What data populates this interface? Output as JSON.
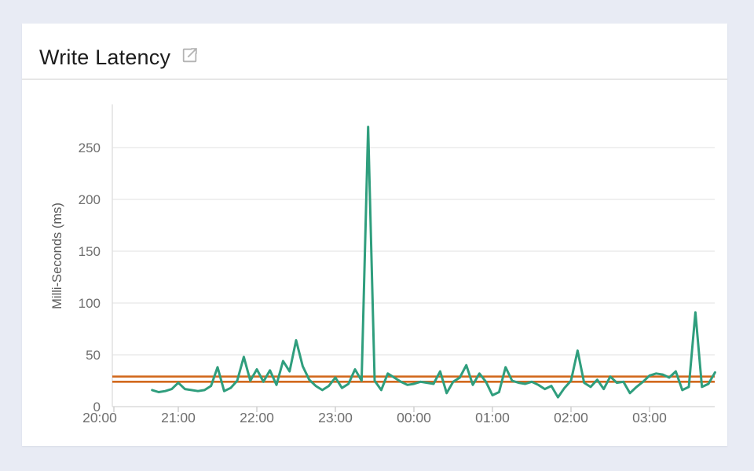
{
  "page": {
    "background_color": "#e8ebf4"
  },
  "card": {
    "title": "Write Latency",
    "title_icon": "external-link-icon"
  },
  "chart_data": {
    "type": "line",
    "title": "Write Latency",
    "xlabel": "",
    "ylabel": "Milli-Seconds (ms)",
    "x_tick_labels": [
      "20:00",
      "21:00",
      "22:00",
      "23:00",
      "00:00",
      "01:00",
      "02:00",
      "03:00"
    ],
    "y_ticks": [
      0,
      50,
      100,
      150,
      200,
      250
    ],
    "ylim": [
      0,
      280
    ],
    "grid": true,
    "legend": "none",
    "x_start_label": "20:40",
    "x_start_offset_hours": 0.667,
    "x_interval_minutes": 5,
    "series": [
      {
        "name": "write-latency-ms",
        "color": "#2f9e7d",
        "values": [
          16,
          14,
          15,
          17,
          23,
          17,
          16,
          15,
          16,
          20,
          38,
          15,
          18,
          25,
          48,
          25,
          36,
          24,
          35,
          21,
          44,
          34,
          64,
          39,
          26,
          20,
          16,
          20,
          28,
          18,
          22,
          36,
          25,
          270,
          25,
          16,
          32,
          28,
          24,
          21,
          22,
          24,
          23,
          22,
          34,
          13,
          24,
          28,
          40,
          21,
          32,
          24,
          11,
          14,
          38,
          25,
          23,
          22,
          24,
          21,
          17,
          20,
          9,
          18,
          25,
          54,
          23,
          19,
          26,
          17,
          29,
          23,
          24,
          13,
          19,
          24,
          30,
          32,
          31,
          28,
          34,
          16,
          19,
          91,
          19,
          22,
          33
        ]
      }
    ],
    "reference_lines": [
      {
        "name": "upper-threshold",
        "value": 29,
        "color": "#d2691e"
      },
      {
        "name": "lower-threshold",
        "value": 24,
        "color": "#d2691e"
      }
    ],
    "colors": {
      "grid_line": "#ececec",
      "zero_line": "#dcdcdc",
      "axis_line": "#e0e0e0",
      "tick_mark": "#cfcfcf",
      "tick_label": "#6e6e6e",
      "axis_title": "#5a5a5a"
    }
  }
}
